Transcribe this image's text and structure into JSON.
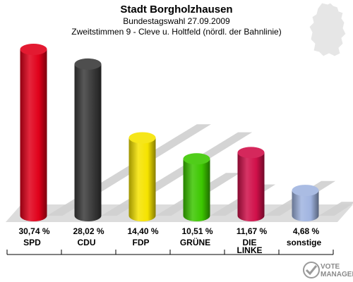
{
  "chart_data": {
    "type": "bar",
    "title": "Stadt Borgholzhausen",
    "subtitle": "Bundestagswahl 27.09.2009",
    "subtitle2": "Zweitstimmen 9 - Cleve u. Holtfeld (nördl. der Bahnlinie)",
    "categories": [
      "SPD",
      "CDU",
      "FDP",
      "GRÜNE",
      "DIE LINKE",
      "sonstige"
    ],
    "values": [
      30.74,
      28.02,
      14.4,
      10.51,
      11.67,
      4.68
    ],
    "value_labels": [
      "30,74 %",
      "28,02 %",
      "14,40 %",
      "10,51 %",
      "11,67 %",
      "4,68 %"
    ],
    "colors": [
      "#e0001a",
      "#3a3a3a",
      "#f5e300",
      "#3cc700",
      "#d0104a",
      "#a0b4e0"
    ],
    "ylim": [
      0,
      31
    ],
    "grid": false,
    "legend": "none"
  },
  "watermark": {
    "line1": "VOTE",
    "line2": "MANAGER"
  }
}
